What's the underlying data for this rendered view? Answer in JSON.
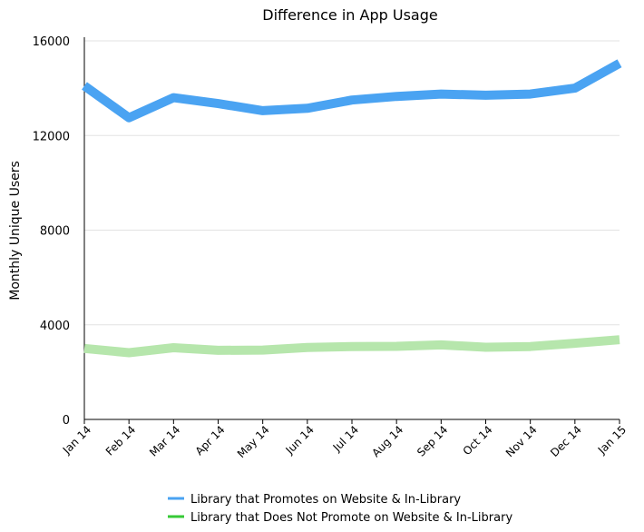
{
  "chart_data": {
    "type": "line",
    "title": "Difference in App Usage",
    "xlabel": "",
    "ylabel": "Monthly Unique Users",
    "categories": [
      "Jan 14",
      "Feb 14",
      "Mar 14",
      "Apr 14",
      "May 14",
      "Jun 14",
      "Jul 14",
      "Aug 14",
      "Sep 14",
      "Oct 14",
      "Nov 14",
      "Dec 14",
      "Jan 15"
    ],
    "yticks": [
      "0",
      "4000",
      "8000",
      "12000",
      "16000"
    ],
    "ylim": [
      0,
      16000
    ],
    "grid": true,
    "legend": "bottom",
    "series": [
      {
        "name": "Library that Promotes on Website & In-Library",
        "color": "#4aa3f2",
        "values": [
          14100,
          12750,
          13600,
          13350,
          13050,
          13150,
          13500,
          13650,
          13750,
          13700,
          13750,
          14000,
          15050
        ]
      },
      {
        "name": "Library that Does Not Promote on Website & In-Library",
        "color": "#b6e6ac",
        "values": [
          3000,
          2820,
          3030,
          2920,
          2930,
          3040,
          3080,
          3090,
          3150,
          3050,
          3080,
          3220,
          3370
        ]
      }
    ],
    "legend_colors": [
      "#4aa3f2",
      "#36c936"
    ]
  }
}
